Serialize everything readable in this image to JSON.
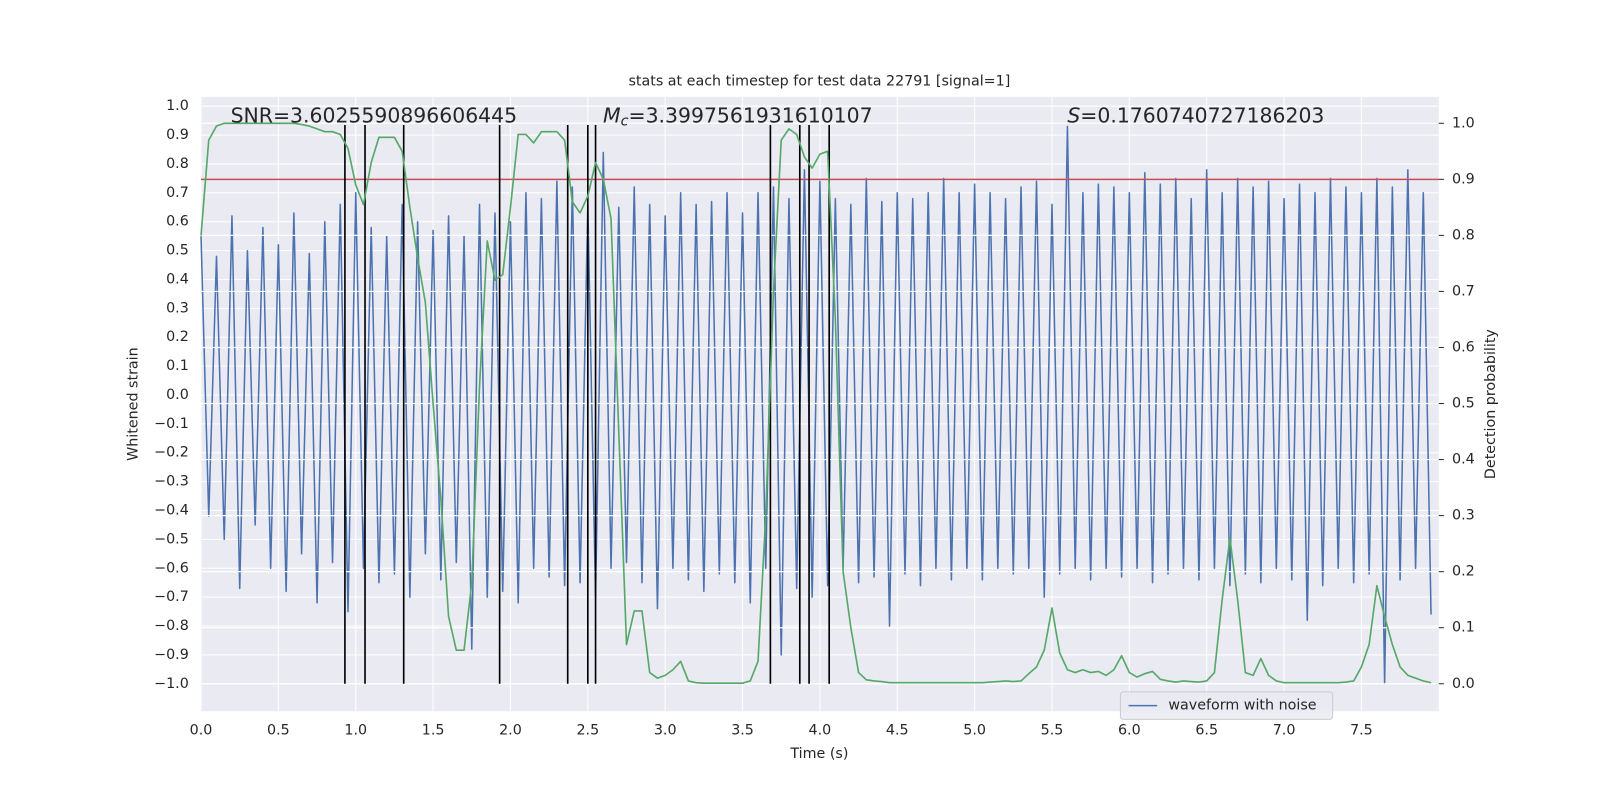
{
  "chart_data": {
    "type": "line",
    "title": "stats at each timestep for test data 22791 [signal=1]",
    "xlabel": "Time (s)",
    "ylabel": "Whitened strain",
    "y2label": "Detection probability",
    "annotations": {
      "snr": "SNR=3.6025590896606445",
      "mc_symbol": "M",
      "mc_subscript": "c",
      "mc_value": "=3.3997561931610107",
      "s_symbol": "S",
      "s_value": "=0.1760740727186203"
    },
    "xlim": [
      0,
      8.0
    ],
    "ylim": [
      -1.095,
      1.032
    ],
    "y2lim": [
      -0.049,
      1.047
    ],
    "xticks": [
      {
        "value": 0,
        "label": "0.0"
      },
      {
        "value": 0.5,
        "label": "0.5"
      },
      {
        "value": 1,
        "label": "1.0"
      },
      {
        "value": 1.5,
        "label": "1.5"
      },
      {
        "value": 2,
        "label": "2.0"
      },
      {
        "value": 2.5,
        "label": "2.5"
      },
      {
        "value": 3,
        "label": "3.0"
      },
      {
        "value": 3.5,
        "label": "3.5"
      },
      {
        "value": 4,
        "label": "4.0"
      },
      {
        "value": 4.5,
        "label": "4.5"
      },
      {
        "value": 5,
        "label": "5.0"
      },
      {
        "value": 5.5,
        "label": "5.5"
      },
      {
        "value": 6,
        "label": "6.0"
      },
      {
        "value": 6.5,
        "label": "6.5"
      },
      {
        "value": 7,
        "label": "7.0"
      },
      {
        "value": 7.5,
        "label": "7.5"
      }
    ],
    "yticks": [
      {
        "value": -1,
        "label": "−1.0"
      },
      {
        "value": -0.9,
        "label": "−0.9"
      },
      {
        "value": -0.8,
        "label": "−0.8"
      },
      {
        "value": -0.7,
        "label": "−0.7"
      },
      {
        "value": -0.6,
        "label": "−0.6"
      },
      {
        "value": -0.5,
        "label": "−0.5"
      },
      {
        "value": -0.4,
        "label": "−0.4"
      },
      {
        "value": -0.3,
        "label": "−0.3"
      },
      {
        "value": -0.2,
        "label": "−0.2"
      },
      {
        "value": -0.1,
        "label": "−0.1"
      },
      {
        "value": 0,
        "label": "0.0"
      },
      {
        "value": 0.1,
        "label": "0.1"
      },
      {
        "value": 0.2,
        "label": "0.2"
      },
      {
        "value": 0.3,
        "label": "0.3"
      },
      {
        "value": 0.4,
        "label": "0.4"
      },
      {
        "value": 0.5,
        "label": "0.5"
      },
      {
        "value": 0.6,
        "label": "0.6"
      },
      {
        "value": 0.7,
        "label": "0.7"
      },
      {
        "value": 0.8,
        "label": "0.8"
      },
      {
        "value": 0.9,
        "label": "0.9"
      },
      {
        "value": 1,
        "label": "1.0"
      }
    ],
    "y2ticks": [
      {
        "value": 0,
        "label": "0.0"
      },
      {
        "value": 0.1,
        "label": "0.1"
      },
      {
        "value": 0.2,
        "label": "0.2"
      },
      {
        "value": 0.3,
        "label": "0.3"
      },
      {
        "value": 0.4,
        "label": "0.4"
      },
      {
        "value": 0.5,
        "label": "0.5"
      },
      {
        "value": 0.6,
        "label": "0.6"
      },
      {
        "value": 0.7,
        "label": "0.7"
      },
      {
        "value": 0.8,
        "label": "0.8"
      },
      {
        "value": 0.9,
        "label": "0.9"
      },
      {
        "value": 1,
        "label": "1.0"
      }
    ],
    "grid": true,
    "legend_loc": "lower right",
    "x": [
      0,
      0.05,
      0.1,
      0.15,
      0.2,
      0.25,
      0.3,
      0.35,
      0.4,
      0.45,
      0.5,
      0.55,
      0.6,
      0.65,
      0.7,
      0.75,
      0.8,
      0.85,
      0.9,
      0.95,
      1,
      1.05,
      1.1,
      1.15,
      1.2,
      1.25,
      1.3,
      1.35,
      1.4,
      1.45,
      1.5,
      1.55,
      1.6,
      1.65,
      1.7,
      1.75,
      1.8,
      1.85,
      1.9,
      1.95,
      2,
      2.05,
      2.1,
      2.15,
      2.2,
      2.25,
      2.3,
      2.35,
      2.4,
      2.45,
      2.5,
      2.55,
      2.6,
      2.65,
      2.7,
      2.75,
      2.8,
      2.85,
      2.9,
      2.95,
      3,
      3.05,
      3.1,
      3.15,
      3.2,
      3.25,
      3.3,
      3.35,
      3.4,
      3.45,
      3.5,
      3.55,
      3.6,
      3.65,
      3.7,
      3.75,
      3.8,
      3.85,
      3.9,
      3.95,
      4,
      4.05,
      4.1,
      4.15,
      4.2,
      4.25,
      4.3,
      4.35,
      4.4,
      4.45,
      4.5,
      4.55,
      4.6,
      4.65,
      4.7,
      4.75,
      4.8,
      4.85,
      4.9,
      4.95,
      5,
      5.05,
      5.1,
      5.15,
      5.2,
      5.25,
      5.3,
      5.35,
      5.4,
      5.45,
      5.5,
      5.55,
      5.6,
      5.65,
      5.7,
      5.75,
      5.8,
      5.85,
      5.9,
      5.95,
      6,
      6.05,
      6.1,
      6.15,
      6.2,
      6.25,
      6.3,
      6.35,
      6.4,
      6.45,
      6.5,
      6.55,
      6.6,
      6.65,
      6.7,
      6.75,
      6.8,
      6.85,
      6.9,
      6.95,
      7,
      7.05,
      7.1,
      7.15,
      7.2,
      7.25,
      7.3,
      7.35,
      7.4,
      7.45,
      7.5,
      7.55,
      7.6,
      7.65,
      7.7,
      7.75,
      7.8,
      7.85,
      7.9,
      7.95
    ],
    "series": [
      {
        "name": "waveform with noise",
        "color": "#4c72b0",
        "axis": "y",
        "values": [
          0.55,
          -0.42,
          0.48,
          -0.5,
          0.62,
          -0.67,
          0.5,
          -0.45,
          0.58,
          -0.6,
          0.52,
          -0.68,
          0.63,
          -0.55,
          0.49,
          -0.72,
          0.6,
          -0.58,
          0.66,
          -0.75,
          0.7,
          -0.6,
          0.58,
          -0.65,
          0.55,
          -0.62,
          0.66,
          -0.7,
          0.6,
          -0.55,
          0.57,
          -0.64,
          0.62,
          -0.58,
          0.55,
          -0.88,
          0.66,
          -0.7,
          0.63,
          -0.68,
          0.6,
          -0.72,
          0.7,
          -0.6,
          0.68,
          -0.63,
          0.74,
          -0.66,
          0.72,
          -0.65,
          0.66,
          -0.7,
          0.84,
          -0.6,
          0.65,
          -0.58,
          0.72,
          -0.65,
          0.66,
          -0.74,
          0.62,
          -0.6,
          0.7,
          -0.64,
          0.66,
          -0.68,
          0.67,
          -0.62,
          0.7,
          -0.65,
          0.63,
          -0.72,
          0.7,
          -0.6,
          0.72,
          -0.9,
          0.68,
          -0.67,
          0.78,
          -0.7,
          0.74,
          -0.66,
          0.68,
          -0.6,
          0.66,
          -0.65,
          0.75,
          -0.63,
          0.67,
          -0.8,
          0.7,
          -0.62,
          0.68,
          -0.66,
          0.7,
          -0.6,
          0.75,
          -0.64,
          0.7,
          -0.6,
          0.73,
          -0.64,
          0.7,
          -0.6,
          0.68,
          -0.62,
          0.72,
          -0.6,
          0.74,
          -0.7,
          0.66,
          -0.62,
          0.93,
          -0.6,
          0.7,
          -0.64,
          0.73,
          -0.6,
          0.72,
          -0.63,
          0.7,
          -0.6,
          0.77,
          -0.65,
          0.73,
          -0.62,
          0.75,
          -0.6,
          0.68,
          -0.64,
          0.78,
          -0.6,
          0.7,
          -0.66,
          0.75,
          -0.62,
          0.72,
          -0.65,
          0.74,
          -0.6,
          0.68,
          -0.64,
          0.73,
          -0.78,
          0.7,
          -0.66,
          0.75,
          -0.6,
          0.72,
          -0.65,
          0.7,
          -0.62,
          0.75,
          -1.0,
          0.72,
          -0.64,
          0.78,
          -0.6,
          0.7,
          -0.76
        ]
      },
      {
        "color": "#55a868",
        "axis": "y2",
        "values": [
          0.8,
          0.97,
          0.995,
          1,
          1,
          1,
          1,
          1,
          1,
          1,
          1,
          1,
          1,
          0.998,
          0.995,
          0.99,
          0.985,
          0.985,
          0.98,
          0.955,
          0.89,
          0.855,
          0.93,
          0.975,
          0.975,
          0.975,
          0.95,
          0.85,
          0.76,
          0.68,
          0.5,
          0.33,
          0.12,
          0.06,
          0.06,
          0.18,
          0.53,
          0.79,
          0.72,
          0.73,
          0.85,
          0.98,
          0.98,
          0.965,
          0.985,
          0.985,
          0.985,
          0.97,
          0.86,
          0.84,
          0.87,
          0.93,
          0.9,
          0.83,
          0.45,
          0.07,
          0.13,
          0.13,
          0.02,
          0.01,
          0.015,
          0.025,
          0.04,
          0.005,
          0.002,
          0.001,
          0.001,
          0.001,
          0.001,
          0.001,
          0.001,
          0.005,
          0.04,
          0.3,
          0.7,
          0.97,
          0.99,
          0.98,
          0.94,
          0.92,
          0.945,
          0.95,
          0.65,
          0.2,
          0.1,
          0.02,
          0.007,
          0.005,
          0.004,
          0.002,
          0.002,
          0.002,
          0.002,
          0.002,
          0.002,
          0.002,
          0.002,
          0.002,
          0.002,
          0.002,
          0.002,
          0.002,
          0.003,
          0.004,
          0.005,
          0.004,
          0.005,
          0.018,
          0.03,
          0.06,
          0.135,
          0.055,
          0.025,
          0.02,
          0.025,
          0.02,
          0.022,
          0.015,
          0.025,
          0.05,
          0.02,
          0.012,
          0.018,
          0.022,
          0.008,
          0.005,
          0.003,
          0.005,
          0.004,
          0.003,
          0.005,
          0.02,
          0.15,
          0.26,
          0.15,
          0.02,
          0.015,
          0.045,
          0.015,
          0.005,
          0.002,
          0.002,
          0.002,
          0.002,
          0.002,
          0.002,
          0.002,
          0.002,
          0.003,
          0.005,
          0.03,
          0.07,
          0.175,
          0.12,
          0.07,
          0.03,
          0.015,
          0.01,
          0.005,
          0.002
        ]
      }
    ],
    "threshold": {
      "value": 0.9,
      "axis": "y2",
      "color": "#c44e52"
    },
    "vlines": [
      0.93,
      1.06,
      1.31,
      1.93,
      2.37,
      2.5,
      2.55,
      3.68,
      3.87,
      3.93,
      4.06
    ],
    "vline_span": [
      -1.0,
      0.935
    ],
    "vline_color": "#000000"
  }
}
